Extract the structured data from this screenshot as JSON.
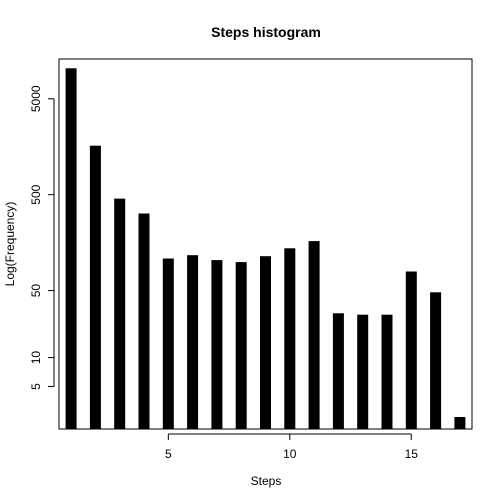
{
  "chart_data": {
    "type": "bar",
    "title": "Steps histogram",
    "xlabel": "Steps",
    "ylabel": "Log(Frequency)",
    "y_scale": "log",
    "x_range": [
      0.5,
      17.5
    ],
    "y_range": [
      1.8,
      13000
    ],
    "x_ticks": [
      5,
      10,
      15
    ],
    "x_tick_labels": [
      "5",
      "10",
      "15"
    ],
    "y_ticks": [
      5,
      10,
      50,
      500,
      5000
    ],
    "y_tick_labels": [
      "5",
      "10",
      "50",
      "500",
      "5000"
    ],
    "grid": false,
    "legend": "none",
    "bar_color": "#000000",
    "categories": [
      1,
      2,
      3,
      4,
      5,
      6,
      7,
      8,
      9,
      10,
      11,
      12,
      13,
      14,
      15,
      16,
      17
    ],
    "values": [
      10400,
      1620,
      455,
      318,
      108,
      117,
      104,
      99,
      114,
      138,
      164,
      29,
      28,
      28,
      79,
      48,
      2.4
    ]
  }
}
